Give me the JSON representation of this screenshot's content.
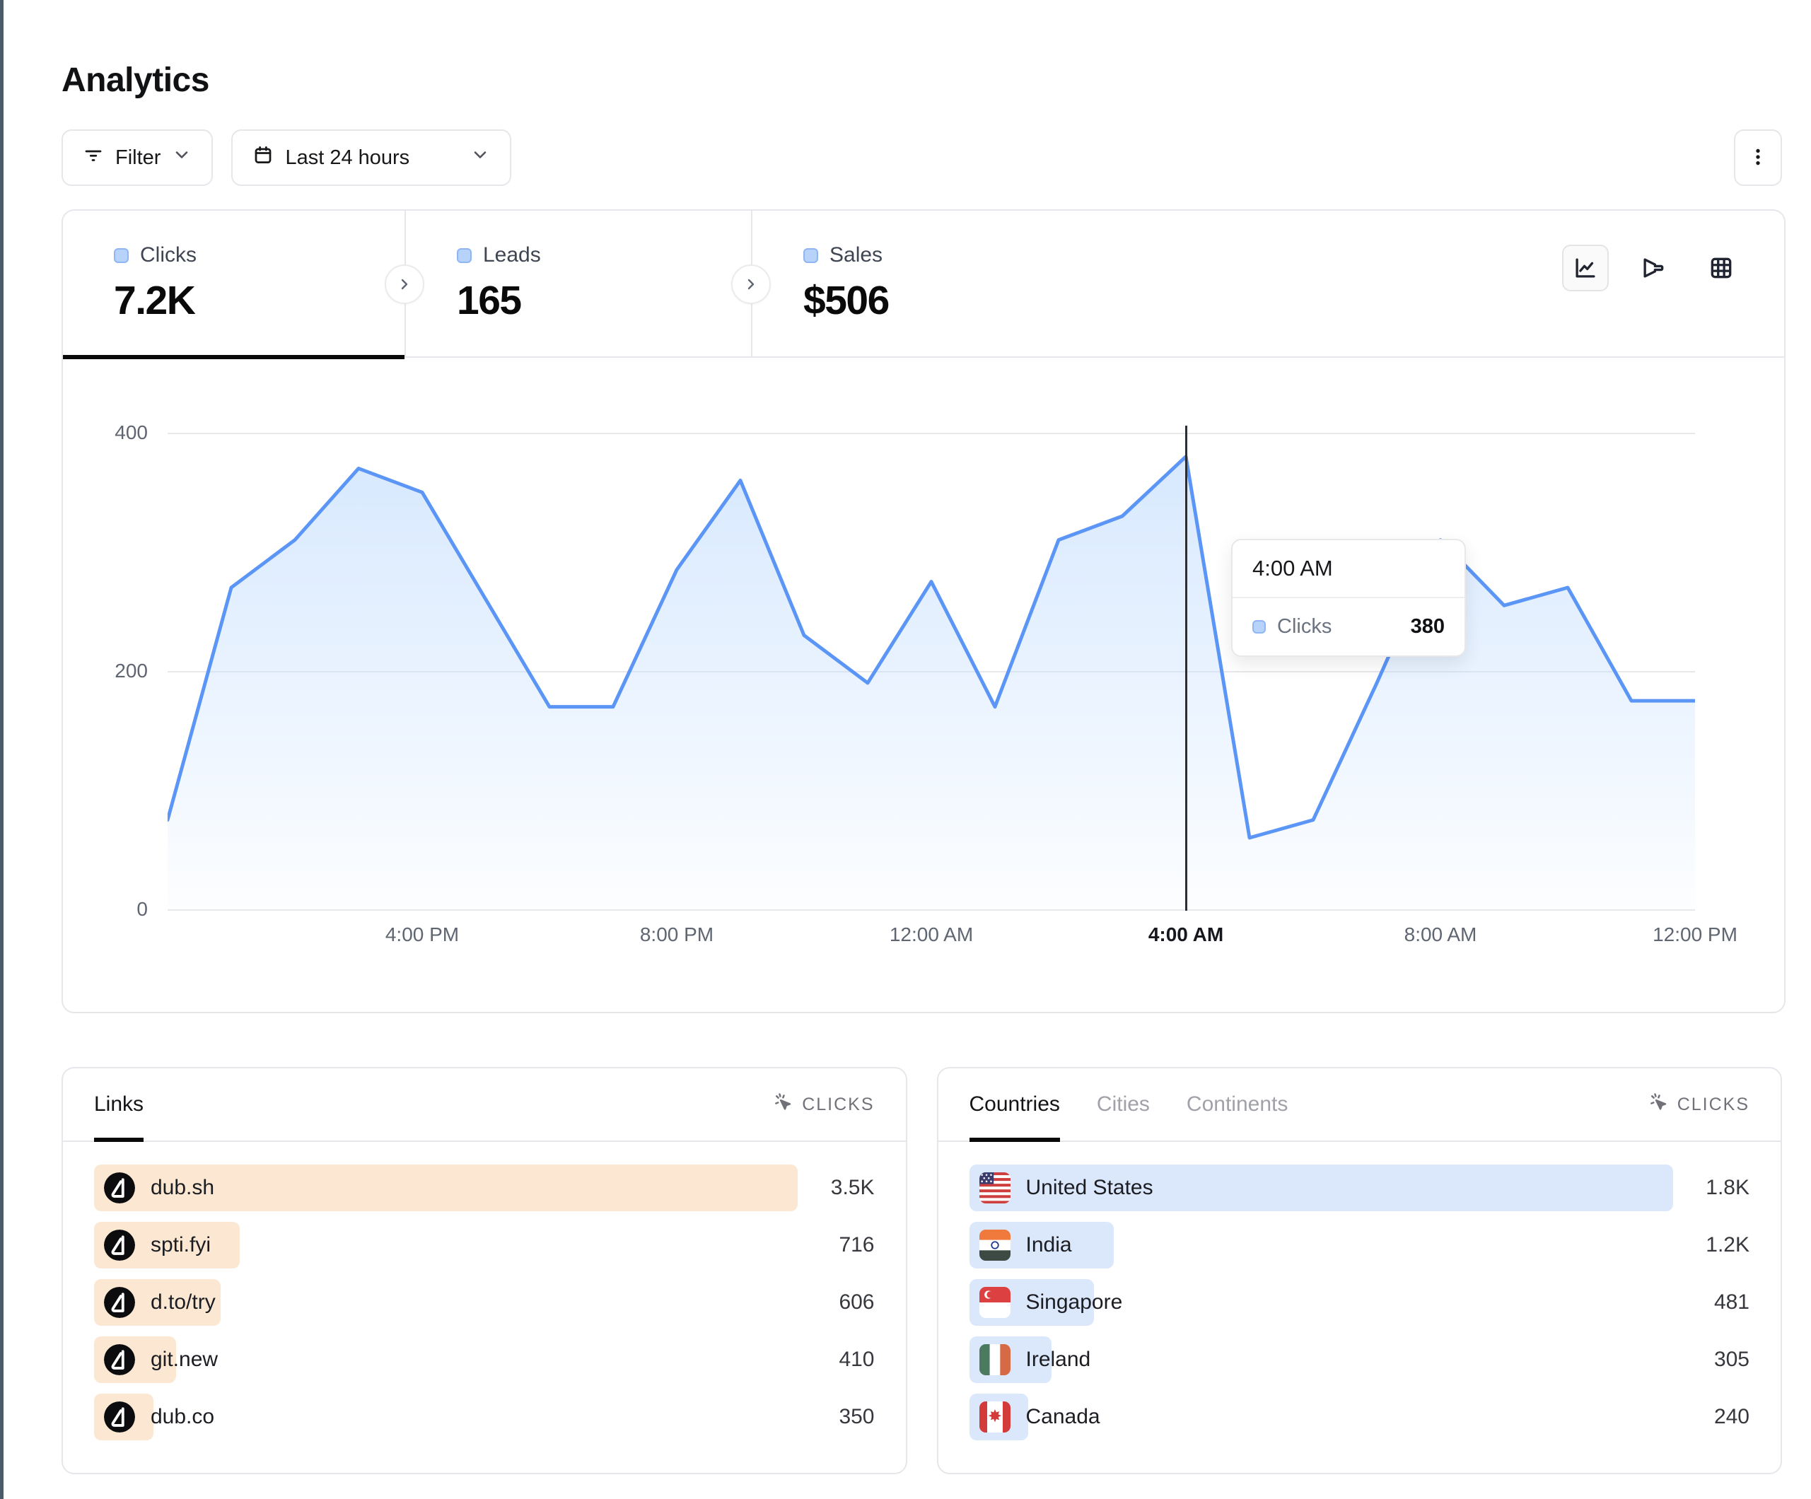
{
  "page": {
    "title": "Analytics"
  },
  "toolbar": {
    "filter_label": "Filter",
    "date_range_label": "Last 24 hours",
    "filter_icon": "filter-lines-icon",
    "date_icon": "calendar-icon",
    "menu_icon": "kebab-menu-icon"
  },
  "stats": {
    "tabs": [
      {
        "label": "Clicks",
        "value": "7.2K",
        "active": true
      },
      {
        "label": "Leads",
        "value": "165",
        "active": false
      },
      {
        "label": "Sales",
        "value": "$506",
        "active": false
      }
    ]
  },
  "view_toggles": [
    "line-chart-icon",
    "funnel-icon",
    "grid-icon"
  ],
  "chart_data": {
    "type": "area",
    "title": "Clicks over last 24 hours",
    "series_name": "Clicks",
    "x": [
      "12:00 PM",
      "1:00 PM",
      "2:00 PM",
      "3:00 PM",
      "4:00 PM",
      "5:00 PM",
      "6:00 PM",
      "7:00 PM",
      "8:00 PM",
      "9:00 PM",
      "10:00 PM",
      "11:00 PM",
      "12:00 AM",
      "1:00 AM",
      "2:00 AM",
      "3:00 AM",
      "4:00 AM",
      "5:00 AM",
      "6:00 AM",
      "7:00 AM",
      "8:00 AM",
      "9:00 AM",
      "10:00 AM",
      "11:00 AM",
      "12:00 PM"
    ],
    "values": [
      75,
      270,
      310,
      370,
      350,
      260,
      170,
      170,
      285,
      360,
      230,
      190,
      275,
      170,
      310,
      330,
      380,
      60,
      75,
      190,
      310,
      255,
      270,
      175,
      175
    ],
    "xticks": [
      "4:00 PM",
      "8:00 PM",
      "12:00 AM",
      "4:00 AM",
      "8:00 AM",
      "12:00 PM"
    ],
    "xtick_indices": [
      4,
      8,
      12,
      16,
      20,
      24
    ],
    "yticks": [
      0,
      200,
      400
    ],
    "ylim": [
      0,
      400
    ],
    "grid": true,
    "legend": "none",
    "line_color": "#5b96f7",
    "fill_color": "#bfdbfe",
    "hover": {
      "index": 16,
      "x_label": "4:00 AM",
      "series": "Clicks",
      "value": "380"
    }
  },
  "links_panel": {
    "tab": "Links",
    "metric_label": "CLICKS",
    "metric_icon": "cursor-click-icon",
    "bar_color": "#fce8d2",
    "rows": [
      {
        "icon": "dub-logo-icon",
        "label": "dub.sh",
        "value": "3.5K",
        "bar_pct": 100
      },
      {
        "icon": "dub-logo-icon",
        "label": "spti.fyi",
        "value": "716",
        "bar_pct": 20.7
      },
      {
        "icon": "dub-logo-icon",
        "label": "d.to/try",
        "value": "606",
        "bar_pct": 18
      },
      {
        "icon": "dub-logo-icon",
        "label": "git.new",
        "value": "410",
        "bar_pct": 11.7
      },
      {
        "icon": "dub-logo-icon",
        "label": "dub.co",
        "value": "350",
        "bar_pct": 8.4
      }
    ]
  },
  "countries_panel": {
    "tabs": [
      {
        "label": "Countries",
        "active": true
      },
      {
        "label": "Cities",
        "active": false
      },
      {
        "label": "Continents",
        "active": false
      }
    ],
    "metric_label": "CLICKS",
    "metric_icon": "cursor-click-icon",
    "bar_color": "#dbe7fb",
    "rows": [
      {
        "icon": "us-flag-icon",
        "label": "United States",
        "value": "1.8K",
        "bar_pct": 100
      },
      {
        "icon": "in-flag-icon",
        "label": "India",
        "value": "1.2K",
        "bar_pct": 20.6
      },
      {
        "icon": "sg-flag-icon",
        "label": "Singapore",
        "value": "481",
        "bar_pct": 17.7
      },
      {
        "icon": "ie-flag-icon",
        "label": "Ireland",
        "value": "305",
        "bar_pct": 11.7
      },
      {
        "icon": "ca-flag-icon",
        "label": "Canada",
        "value": "240",
        "bar_pct": 8.4
      }
    ]
  },
  "colors": {
    "accent_line": "#5b96f7",
    "left_strip": "#4a5c68",
    "card_border": "#e5e7eb",
    "links_bar": "#fce8d2",
    "countries_bar": "#dbe7fb",
    "legend_chip": "#b7d3f9"
  }
}
